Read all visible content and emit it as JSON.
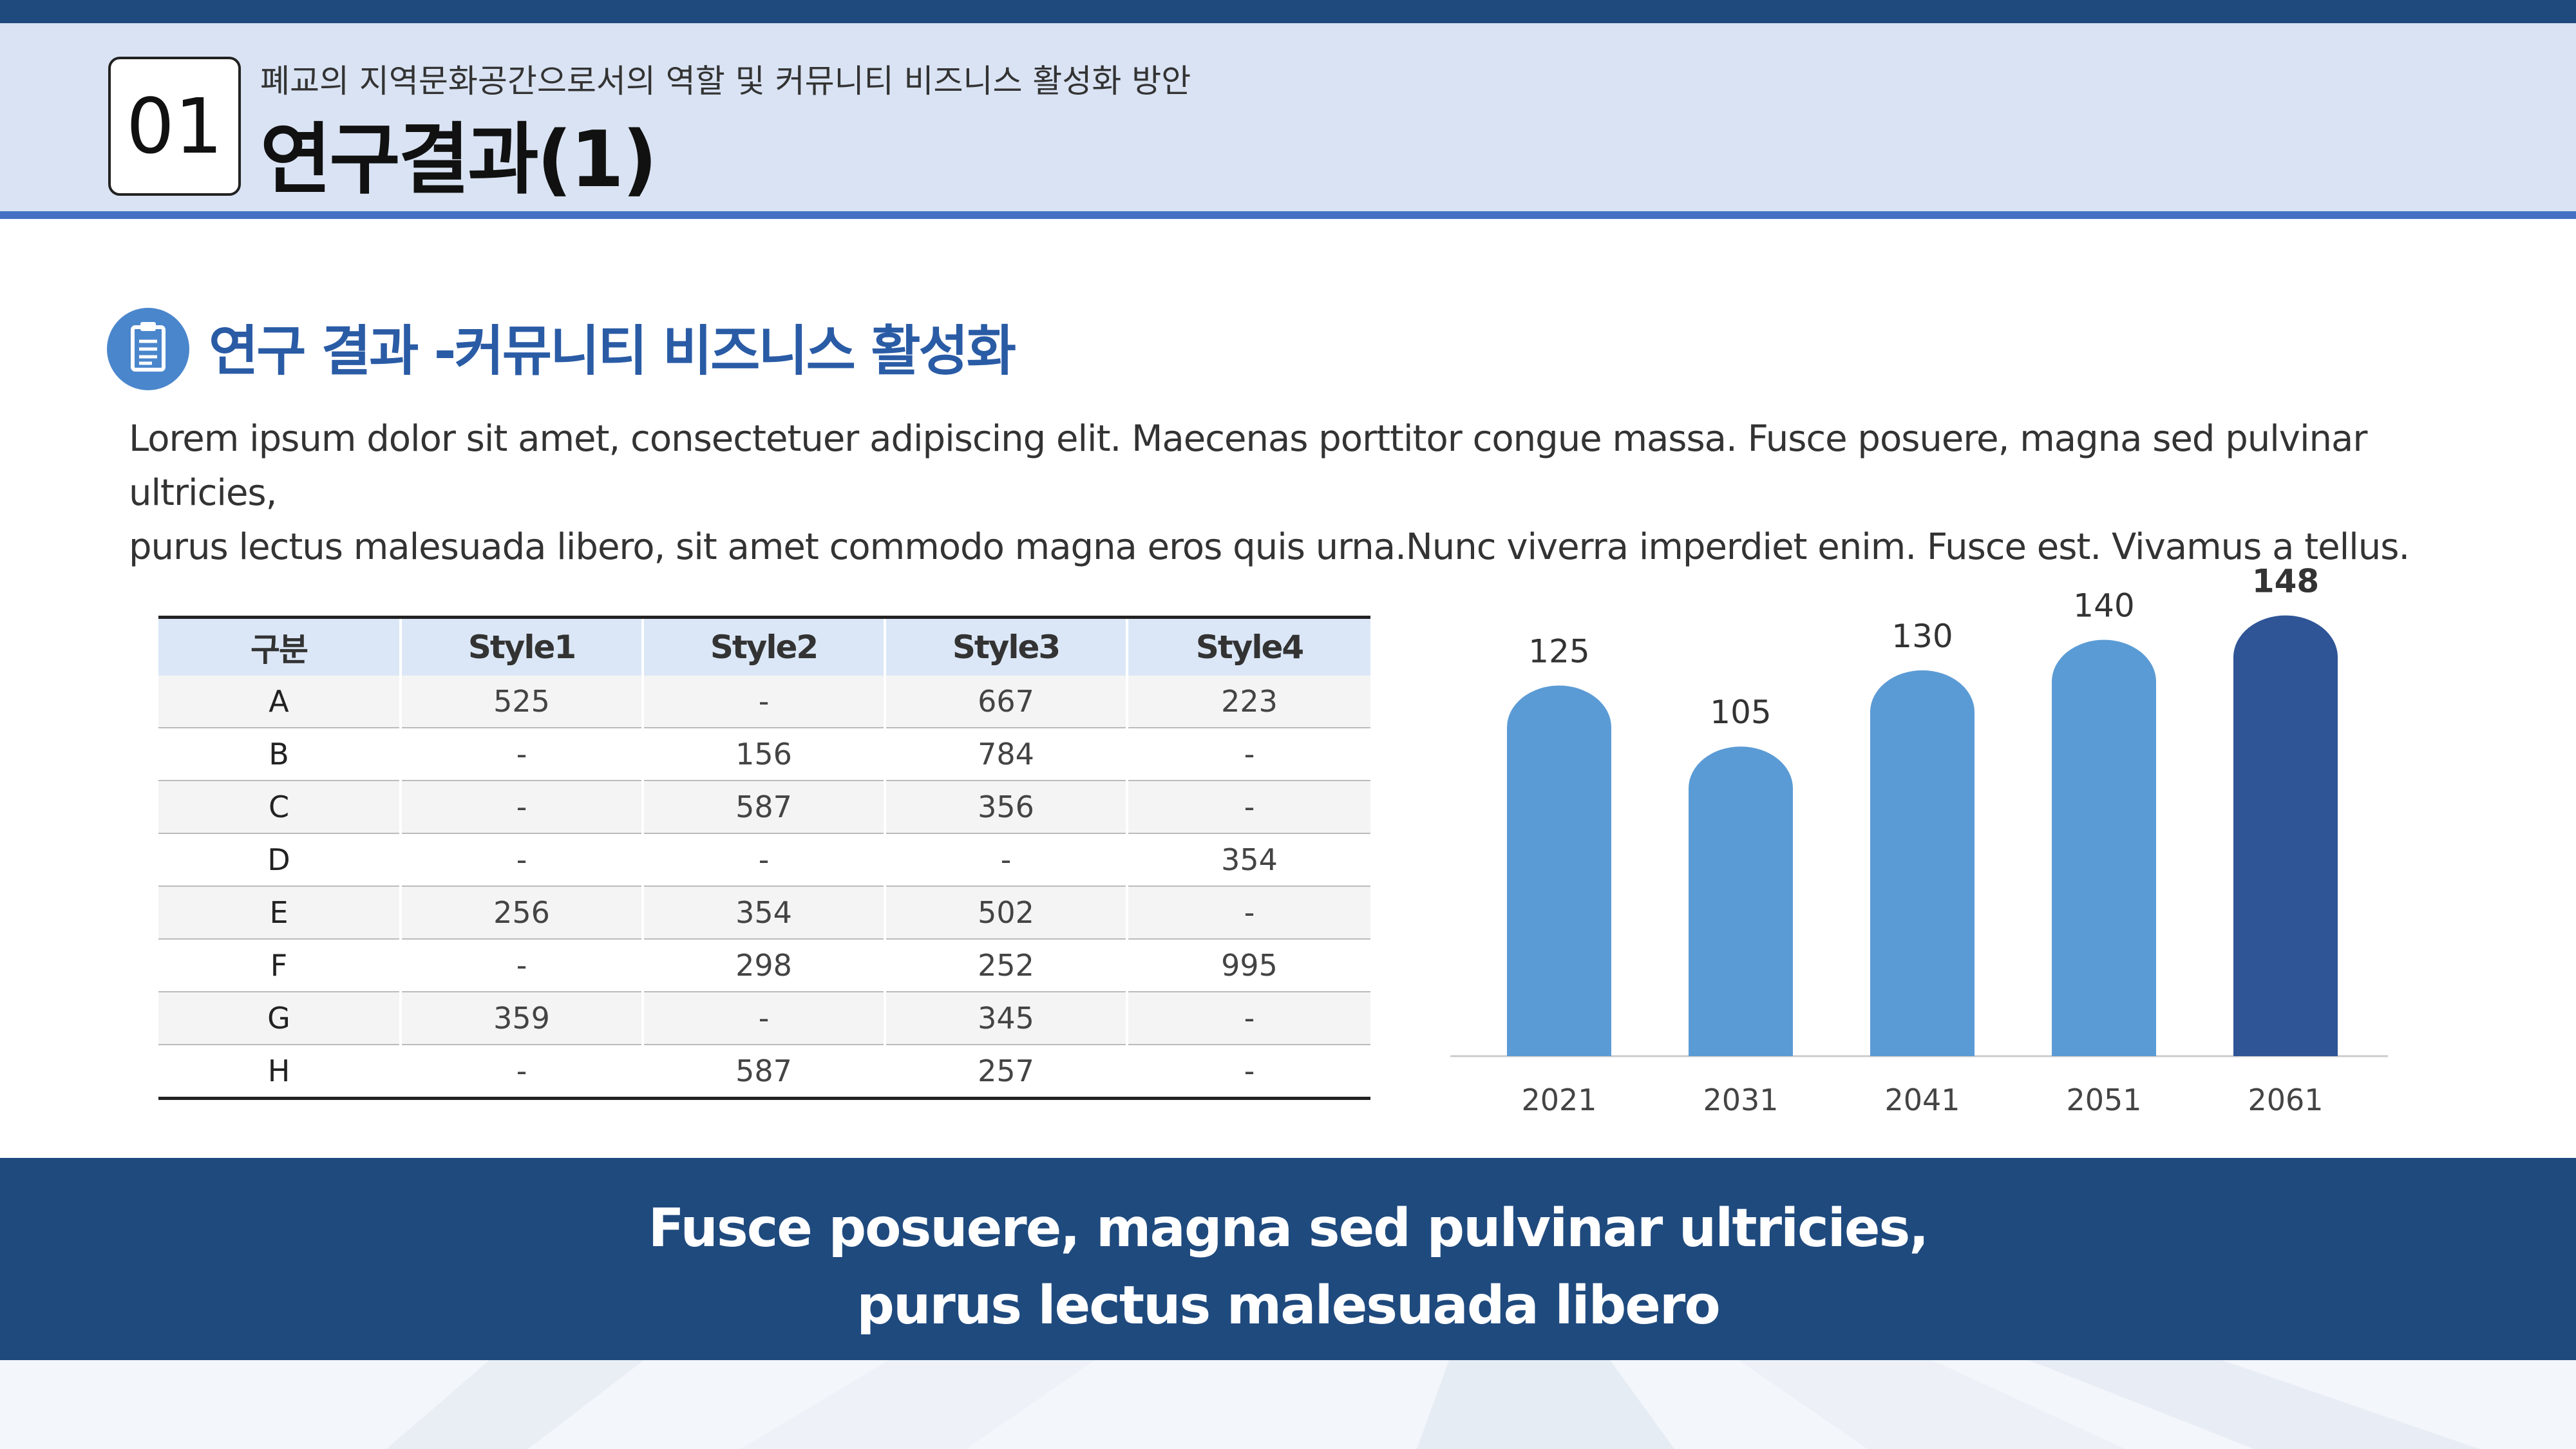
{
  "header": {
    "number": "01",
    "subtitle": "폐교의 지역문화공간으로서의 역할 및 커뮤니티 비즈니스 활성화 방안",
    "title": "연구결과(1)"
  },
  "section": {
    "icon": "clipboard-icon",
    "title": "연구 결과 -커뮤니티 비즈니스 활성화"
  },
  "description": {
    "line1": "Lorem ipsum dolor sit amet, consectetuer adipiscing elit. Maecenas porttitor congue massa. Fusce posuere, magna sed pulvinar ultricies,",
    "line2": "purus lectus malesuada libero, sit amet commodo magna eros quis urna.Nunc viverra imperdiet enim. Fusce est. Vivamus a tellus."
  },
  "table": {
    "headers": [
      "구분",
      "Style1",
      "Style2",
      "Style3",
      "Style4"
    ],
    "rows": [
      [
        "A",
        "525",
        "-",
        "667",
        "223"
      ],
      [
        "B",
        "-",
        "156",
        "784",
        "-"
      ],
      [
        "C",
        "-",
        "587",
        "356",
        "-"
      ],
      [
        "D",
        "-",
        "-",
        "-",
        "354"
      ],
      [
        "E",
        "256",
        "354",
        "502",
        "-"
      ],
      [
        "F",
        "-",
        "298",
        "252",
        "995"
      ],
      [
        "G",
        "359",
        "-",
        "345",
        "-"
      ],
      [
        "H",
        "-",
        "587",
        "257",
        "-"
      ]
    ]
  },
  "chart_data": {
    "type": "bar",
    "categories": [
      "2021",
      "2031",
      "2041",
      "2051",
      "2061"
    ],
    "values": [
      125,
      105,
      130,
      140,
      148
    ],
    "highlight_index": 4,
    "ylim": [
      0,
      150
    ],
    "grid": false,
    "colors": {
      "bar": "#5b9bd5",
      "highlight": "#2f5597"
    }
  },
  "footer": {
    "line1": "Fusce posuere, magna sed pulvinar ultricies,",
    "line2": "purus lectus malesuada libero"
  },
  "colors": {
    "navy": "#1f4a7e",
    "header_bg": "#d9e3f3",
    "accent": "#4471c4",
    "section_title": "#2a5ba5"
  }
}
